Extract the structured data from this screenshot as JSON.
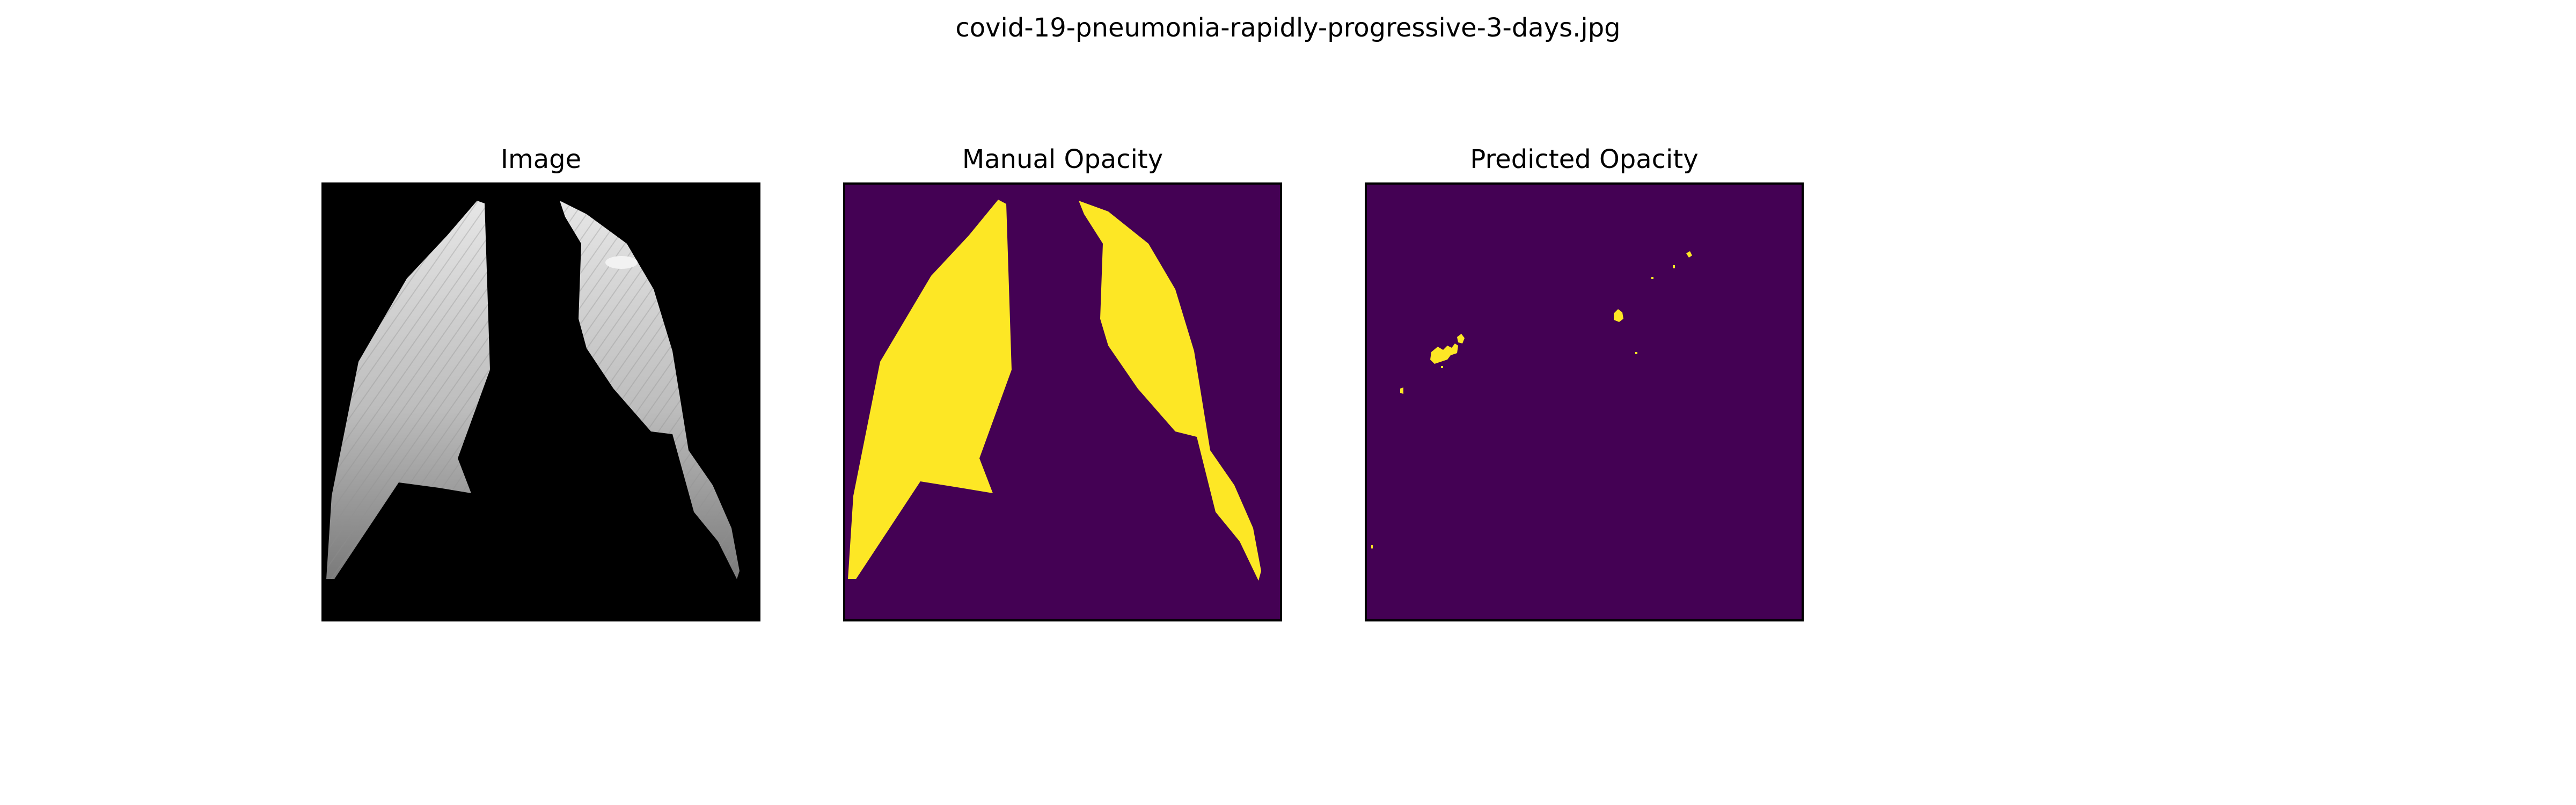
{
  "figure": {
    "title": "covid-19-pneumonia-rapidly-progressive-3-days.jpg"
  },
  "panels": [
    {
      "title": "Image",
      "content": "grayscale chest x-ray lungs on black background"
    },
    {
      "title": "Manual Opacity",
      "content": "mask"
    },
    {
      "title": "Predicted Opacity",
      "content": "mask"
    }
  ],
  "colors": {
    "image_background": "#000000",
    "mask_background": "#440154",
    "mask_foreground": "#fde725",
    "lung_light": "#d9d9d9",
    "lung_dark": "#8a8a8a"
  }
}
